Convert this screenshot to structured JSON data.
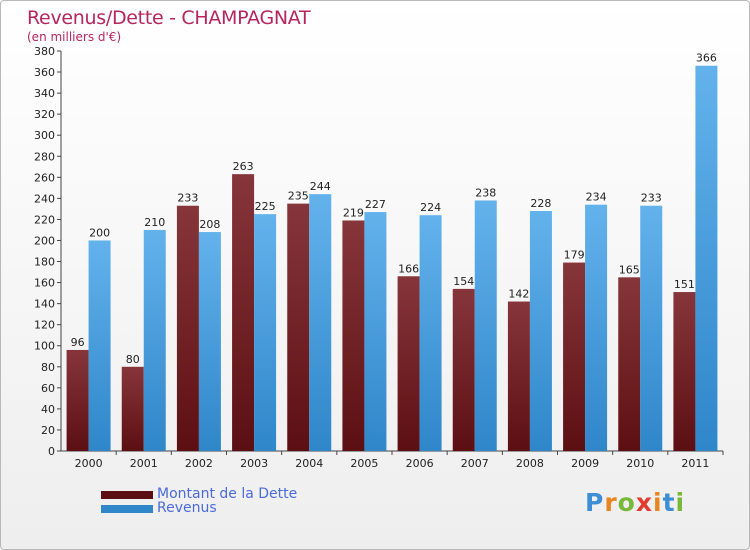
{
  "title": "Revenus/Dette - CHAMPAGNAT",
  "subtitle": "(en milliers d'€)",
  "colors": {
    "title": "#b5265a",
    "dette_top": "#86363a",
    "dette_bottom": "#5c0f12",
    "revenus_top": "#63b2ec",
    "revenus_bottom": "#2f86c9",
    "legend_text": "#4a6bd8"
  },
  "legend": {
    "dette_label": "Montant de la Dette",
    "revenus_label": "Revenus"
  },
  "logo": {
    "text": "Proxiti"
  },
  "chart_data": {
    "type": "bar",
    "title": "Revenus/Dette - CHAMPAGNAT",
    "ylabel": "(en milliers d'€)",
    "xlabel": "",
    "ylim": [
      0,
      380
    ],
    "ytick_step": 20,
    "grid": false,
    "categories": [
      "2000",
      "2001",
      "2002",
      "2003",
      "2004",
      "2005",
      "2006",
      "2007",
      "2008",
      "2009",
      "2010",
      "2011"
    ],
    "series": [
      {
        "name": "Montant de la Dette",
        "values": [
          96,
          80,
          233,
          263,
          235,
          219,
          166,
          154,
          142,
          179,
          165,
          151
        ]
      },
      {
        "name": "Revenus",
        "values": [
          200,
          210,
          208,
          225,
          244,
          227,
          224,
          238,
          228,
          234,
          233,
          366
        ]
      }
    ]
  }
}
